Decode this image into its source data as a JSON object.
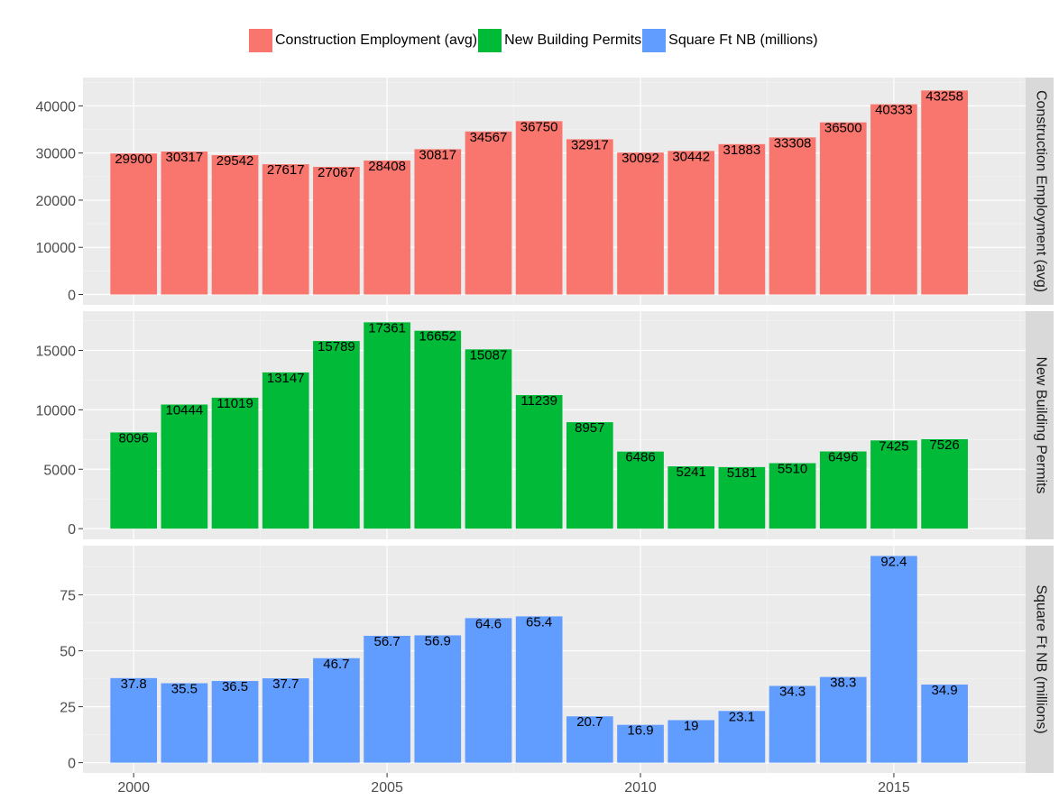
{
  "legend": [
    {
      "label": "Construction Employment (avg)",
      "color": "#F8766D"
    },
    {
      "label": "New Building Permits",
      "color": "#00BA38"
    },
    {
      "label": "Square Ft NB (millions)",
      "color": "#619CFF"
    }
  ],
  "chart_data": {
    "type": "bar",
    "x": [
      2000,
      2001,
      2002,
      2003,
      2004,
      2005,
      2006,
      2007,
      2008,
      2009,
      2010,
      2011,
      2012,
      2013,
      2014,
      2015,
      2016
    ],
    "x_ticks": [
      2000,
      2005,
      2010,
      2015
    ],
    "panel_bg": "#EBEBEB",
    "strip_bg": "#D9D9D9",
    "series": [
      {
        "name": "Construction Employment (avg)",
        "color": "#F8766D",
        "values": [
          29900,
          30317,
          29542,
          27617,
          27067,
          28408,
          30817,
          34567,
          36750,
          32917,
          30092,
          30442,
          31883,
          33308,
          36500,
          40333,
          43258
        ],
        "labels": [
          "29900",
          "30317",
          "29542",
          "27617",
          "27067",
          "28408",
          "30817",
          "34567",
          "36750",
          "32917",
          "30092",
          "30442",
          "31883",
          "33308",
          "36500",
          "40333",
          "43258"
        ],
        "ylim": [
          -2200,
          46000
        ],
        "y_ticks": [
          0,
          10000,
          20000,
          30000,
          40000
        ],
        "y_tick_labels": [
          "0",
          "10000",
          "20000",
          "30000",
          "40000"
        ]
      },
      {
        "name": "New Building Permits",
        "color": "#00BA38",
        "values": [
          8096,
          10444,
          11019,
          13147,
          15789,
          17361,
          16652,
          15087,
          11239,
          8957,
          6486,
          5241,
          5181,
          5510,
          6496,
          7425,
          7526
        ],
        "labels": [
          "8096",
          "10444",
          "11019",
          "13147",
          "15789",
          "17361",
          "16652",
          "15087",
          "11239",
          "8957",
          "6486",
          "5241",
          "5181",
          "5510",
          "6496",
          "7425",
          "7526"
        ],
        "ylim": [
          -900,
          18300
        ],
        "y_ticks": [
          0,
          5000,
          10000,
          15000
        ],
        "y_tick_labels": [
          "0",
          "5000",
          "10000",
          "15000"
        ]
      },
      {
        "name": "Square Ft NB (millions)",
        "color": "#619CFF",
        "values": [
          37.8,
          35.5,
          36.5,
          37.7,
          46.7,
          56.7,
          56.9,
          64.6,
          65.4,
          20.7,
          16.9,
          19,
          23.1,
          34.3,
          38.3,
          92.4,
          34.9
        ],
        "labels": [
          "37.8",
          "35.5",
          "36.5",
          "37.7",
          "46.7",
          "56.7",
          "56.9",
          "64.6",
          "65.4",
          "20.7",
          "16.9",
          "19",
          "23.1",
          "34.3",
          "38.3",
          "92.4",
          "34.9"
        ],
        "ylim": [
          -4.6,
          97
        ],
        "y_ticks": [
          0,
          25,
          50,
          75
        ],
        "y_tick_labels": [
          "0",
          "25",
          "50",
          "75"
        ]
      }
    ]
  }
}
